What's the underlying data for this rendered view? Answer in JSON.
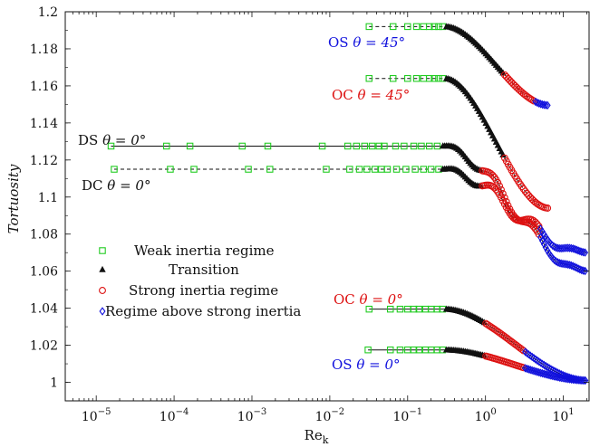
{
  "chart_data": {
    "type": "scatter",
    "xlabel": "Re",
    "xlabel_sub": "k",
    "ylabel": "Tortuosity",
    "xscale": "log",
    "xlim": [
      4e-06,
      22
    ],
    "ylim": [
      0.99,
      1.2
    ],
    "grid": false,
    "legend_position": "center-left",
    "x_ticks": [
      {
        "value": 1e-05,
        "base": "10",
        "exp": "−5"
      },
      {
        "value": 0.0001,
        "base": "10",
        "exp": "−4"
      },
      {
        "value": 0.001,
        "base": "10",
        "exp": "−3"
      },
      {
        "value": 0.01,
        "base": "10",
        "exp": "−2"
      },
      {
        "value": 0.1,
        "base": "10",
        "exp": "−1"
      },
      {
        "value": 1,
        "base": "10",
        "exp": "0"
      },
      {
        "value": 10,
        "base": "10",
        "exp": "1"
      }
    ],
    "y_ticks": [
      {
        "value": 1.0,
        "label": "1"
      },
      {
        "value": 1.02,
        "label": "1.02"
      },
      {
        "value": 1.04,
        "label": "1.04"
      },
      {
        "value": 1.06,
        "label": "1.06"
      },
      {
        "value": 1.08,
        "label": "1.08"
      },
      {
        "value": 1.1,
        "label": "1.1"
      },
      {
        "value": 1.12,
        "label": "1.12"
      },
      {
        "value": 1.14,
        "label": "1.14"
      },
      {
        "value": 1.16,
        "label": "1.16"
      },
      {
        "value": 1.18,
        "label": "1.18"
      },
      {
        "value": 1.2,
        "label": "1.2"
      }
    ],
    "legend": [
      {
        "label": "Weak inertia regime",
        "marker": "square",
        "color": "#22cc22"
      },
      {
        "label": "Transition",
        "marker": "triangle",
        "color": "#111111"
      },
      {
        "label": "Strong inertia regime",
        "marker": "circle",
        "color": "#dd1111"
      },
      {
        "label": "Regime above strong inertia",
        "marker": "diamond",
        "color": "#1111dd"
      }
    ],
    "curves": [
      {
        "id": "OS45",
        "label": "OS",
        "angle": "θ = 45°",
        "label_color": "#1111dd",
        "line": "dashed",
        "x_start": 0.032,
        "x_end": 6.5,
        "y_plateau": 1.192,
        "y_end": 1.1495,
        "weak_end": 0.3,
        "transition_end": 1.7,
        "strong_end": 4.3,
        "weak_markers": [
          0.032,
          0.065,
          0.1,
          0.13,
          0.16,
          0.19,
          0.22,
          0.25,
          0.28
        ]
      },
      {
        "id": "OC45",
        "label": "OC",
        "angle": "θ = 45°",
        "label_color": "#dd1111",
        "line": "dashed",
        "x_start": 0.032,
        "x_end": 6.5,
        "y_plateau": 1.164,
        "y_end": 1.094,
        "weak_end": 0.3,
        "transition_end": 1.7,
        "strong_end": 6.5,
        "weak_markers": [
          0.032,
          0.065,
          0.1,
          0.13,
          0.16,
          0.19,
          0.22,
          0.25,
          0.28
        ]
      },
      {
        "id": "DS0",
        "label": "DS",
        "angle": "θ = 0°",
        "label_color": "#111111",
        "line": "solid",
        "x_start": 1.55e-05,
        "x_end": 20,
        "y_plateau": 1.1275,
        "y_end": 1.06,
        "weak_end": 0.27,
        "transition_end": 0.9,
        "strong_end": 5,
        "weak_markers": [
          1.55e-05,
          8e-05,
          0.00016,
          0.00075,
          0.0016,
          0.008,
          0.017,
          0.022,
          0.028,
          0.035,
          0.043,
          0.05,
          0.07,
          0.09,
          0.12,
          0.15,
          0.19,
          0.24
        ],
        "wavy": true
      },
      {
        "id": "DC0",
        "label": "DC",
        "angle": "θ = 0°",
        "label_color": "#111111",
        "line": "dashed",
        "x_start": 1.7e-05,
        "x_end": 20,
        "y_plateau": 1.115,
        "y_end": 1.07,
        "weak_end": 0.27,
        "transition_end": 0.9,
        "strong_end": 5,
        "weak_markers": [
          1.7e-05,
          8.95e-05,
          0.00018,
          0.0009,
          0.0017,
          0.009,
          0.018,
          0.024,
          0.03,
          0.038,
          0.046,
          0.055,
          0.072,
          0.095,
          0.125,
          0.16,
          0.2,
          0.25
        ],
        "wavy": true
      },
      {
        "id": "OC0",
        "label": "OC",
        "angle": "θ = 0°",
        "label_color": "#dd1111",
        "line": "solid",
        "x_start": 0.032,
        "x_end": 20,
        "y_plateau": 1.0395,
        "y_end": 1.001,
        "weak_end": 0.3,
        "transition_end": 1.0,
        "strong_end": 3.2,
        "weak_markers": [
          0.032,
          0.06,
          0.08,
          0.1,
          0.12,
          0.14,
          0.17,
          0.2,
          0.24,
          0.28
        ]
      },
      {
        "id": "OS0",
        "label": "OS",
        "angle": "θ = 0°",
        "label_color": "#1111dd",
        "line": "solid",
        "x_start": 0.031,
        "x_end": 20,
        "y_plateau": 1.0175,
        "y_end": 1.001,
        "weak_end": 0.3,
        "transition_end": 1.0,
        "strong_end": 3.2,
        "weak_markers": [
          0.031,
          0.06,
          0.08,
          0.1,
          0.12,
          0.14,
          0.17,
          0.2,
          0.24,
          0.28
        ]
      }
    ]
  }
}
